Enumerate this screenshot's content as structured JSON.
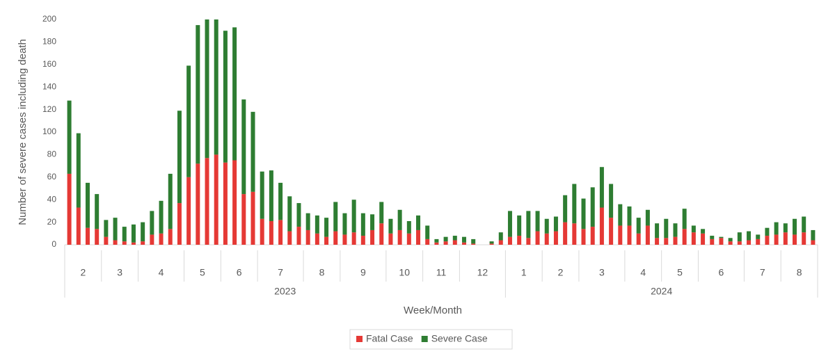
{
  "chart_data": {
    "type": "stacked-bar",
    "y_label": "Number of severe cases including death",
    "x_label": "Week/Month",
    "ylim": [
      0,
      200
    ],
    "yticks": [
      0,
      20,
      40,
      60,
      80,
      100,
      120,
      140,
      160,
      180,
      200
    ],
    "categories": [
      "2",
      "2",
      "2",
      "2",
      "3",
      "3",
      "3",
      "3",
      "4",
      "4",
      "4",
      "4",
      "4",
      "5",
      "5",
      "5",
      "5",
      "6",
      "6",
      "6",
      "6",
      "7",
      "7",
      "7",
      "7",
      "7",
      "8",
      "8",
      "8",
      "8",
      "9",
      "9",
      "9",
      "9",
      "9",
      "10",
      "10",
      "10",
      "10",
      "11",
      "11",
      "11",
      "11",
      "12",
      "12",
      "12",
      "12",
      "12",
      "1",
      "1",
      "1",
      "1",
      "2",
      "2",
      "2",
      "2",
      "3",
      "3",
      "3",
      "3",
      "3",
      "4",
      "4",
      "4",
      "4",
      "5",
      "5",
      "5",
      "5",
      "6",
      "6",
      "6",
      "6",
      "6",
      "7",
      "7",
      "7",
      "7",
      "8",
      "8",
      "8",
      "8"
    ],
    "years": [
      "2023",
      "2023",
      "2023",
      "2023",
      "2023",
      "2023",
      "2023",
      "2023",
      "2023",
      "2023",
      "2023",
      "2023",
      "2023",
      "2023",
      "2023",
      "2023",
      "2023",
      "2023",
      "2023",
      "2023",
      "2023",
      "2023",
      "2023",
      "2023",
      "2023",
      "2023",
      "2023",
      "2023",
      "2023",
      "2023",
      "2023",
      "2023",
      "2023",
      "2023",
      "2023",
      "2023",
      "2023",
      "2023",
      "2023",
      "2023",
      "2023",
      "2023",
      "2023",
      "2023",
      "2023",
      "2023",
      "2023",
      "2023",
      "2024",
      "2024",
      "2024",
      "2024",
      "2024",
      "2024",
      "2024",
      "2024",
      "2024",
      "2024",
      "2024",
      "2024",
      "2024",
      "2024",
      "2024",
      "2024",
      "2024",
      "2024",
      "2024",
      "2024",
      "2024",
      "2024",
      "2024",
      "2024",
      "2024",
      "2024",
      "2024",
      "2024",
      "2024",
      "2024",
      "2024",
      "2024",
      "2024",
      "2024"
    ],
    "series": [
      {
        "name": "Fatal Case",
        "color": "#e53935",
        "values": [
          63,
          33,
          15,
          14,
          7,
          4,
          3,
          2,
          3,
          9,
          10,
          14,
          37,
          60,
          72,
          77,
          80,
          73,
          75,
          45,
          47,
          23,
          21,
          22,
          12,
          16,
          13,
          10,
          7,
          12,
          9,
          11,
          8,
          13,
          19,
          10,
          13,
          10,
          13,
          5,
          2,
          3,
          4,
          2,
          1,
          0,
          1,
          4,
          7,
          8,
          6,
          12,
          10,
          12,
          20,
          19,
          14,
          16,
          33,
          24,
          17,
          17,
          10,
          17,
          6,
          6,
          7,
          14,
          11,
          10,
          5,
          6,
          3,
          3,
          4,
          5,
          8,
          9,
          11,
          9,
          11,
          4
        ]
      },
      {
        "name": "Severe Case",
        "color": "#2e7d32",
        "values": [
          65,
          66,
          40,
          31,
          15,
          20,
          13,
          16,
          17,
          21,
          29,
          49,
          82,
          99,
          123,
          123,
          120,
          117,
          118,
          84,
          71,
          42,
          45,
          33,
          31,
          21,
          15,
          16,
          17,
          26,
          19,
          29,
          20,
          14,
          19,
          13,
          18,
          11,
          13,
          12,
          3,
          4,
          4,
          5,
          4,
          0,
          2,
          7,
          23,
          18,
          24,
          18,
          13,
          13,
          24,
          35,
          27,
          35,
          36,
          30,
          19,
          17,
          14,
          14,
          13,
          17,
          12,
          18,
          6,
          4,
          3,
          1,
          3,
          8,
          8,
          4,
          7,
          11,
          8,
          14,
          14,
          9
        ]
      }
    ]
  }
}
